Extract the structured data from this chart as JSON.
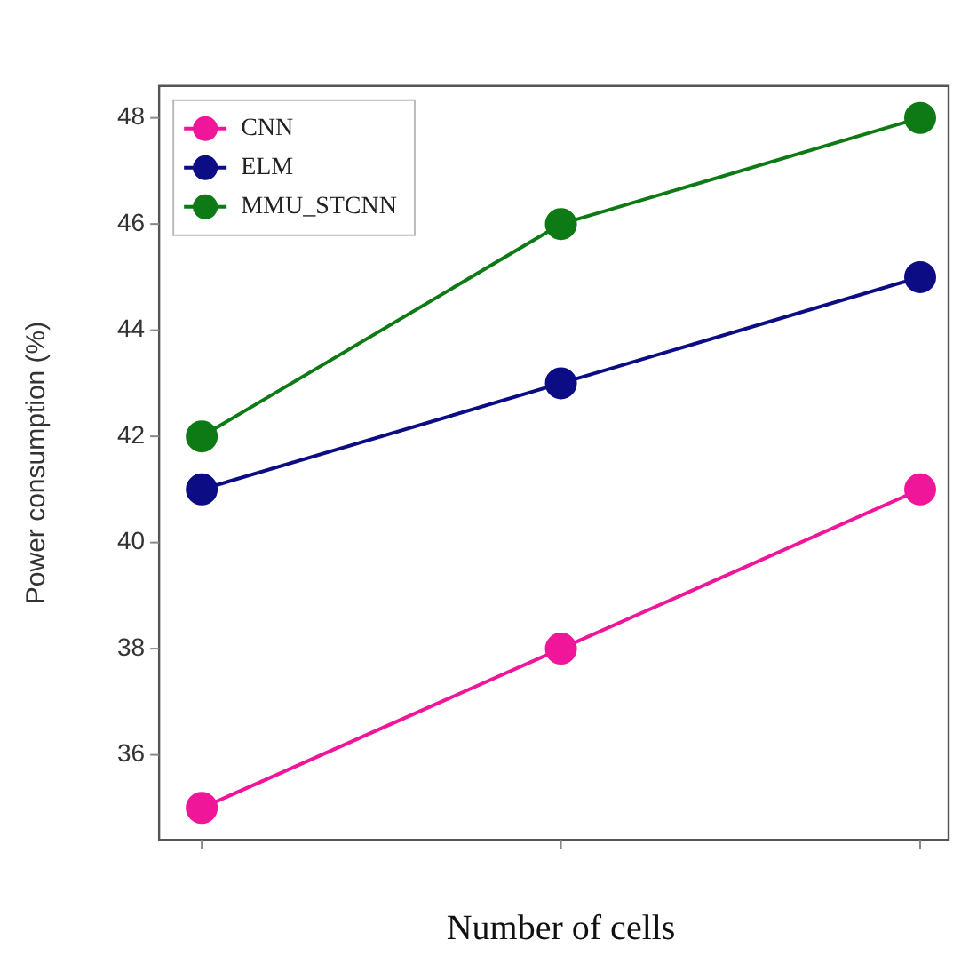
{
  "chart_data": {
    "type": "line",
    "xlabel": "Number of cells",
    "ylabel": "Power consumption (%)",
    "categories": [
      null,
      null,
      null
    ],
    "series": [
      {
        "name": "CNN",
        "color": "#f0169a",
        "values": [
          35,
          38,
          41
        ]
      },
      {
        "name": "ELM",
        "color": "#0c0c85",
        "values": [
          41,
          43,
          45
        ]
      },
      {
        "name": "MMU_STCNN",
        "color": "#0e7a16",
        "values": [
          42,
          46,
          48
        ]
      }
    ],
    "ylim": [
      34.4,
      48.6
    ],
    "yticks": [
      36,
      38,
      40,
      42,
      44,
      46,
      48
    ],
    "grid": false,
    "legend": "top left",
    "marker": "circle",
    "line_style": "solid"
  }
}
